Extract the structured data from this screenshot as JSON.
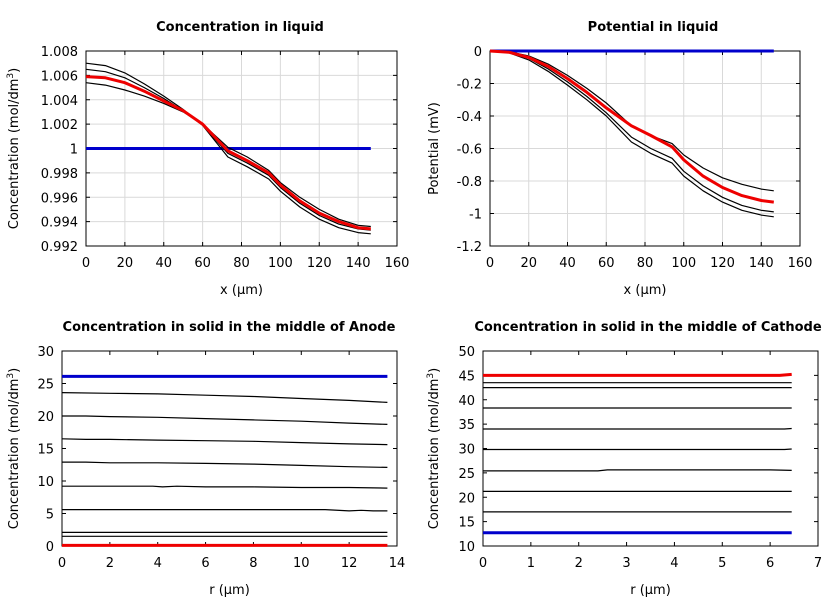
{
  "chart_data": [
    {
      "type": "line",
      "title": "Concentration in liquid",
      "xlabel": "x (µm)",
      "ylabel": "Concentration (mol/dm³)",
      "xlim": [
        0,
        160
      ],
      "ylim": [
        0.992,
        1.008
      ],
      "xticks": [
        0,
        20,
        40,
        60,
        80,
        100,
        120,
        140,
        160
      ],
      "xtick_labels": [
        "0",
        "20",
        "40",
        "60",
        "80",
        "100",
        "120",
        "140",
        "160"
      ],
      "yticks": [
        0.992,
        0.994,
        0.996,
        0.998,
        1.0,
        1.002,
        1.004,
        1.006,
        1.008
      ],
      "ytick_labels": [
        "0.992",
        "0.994",
        "0.996",
        "0.998",
        "1",
        "1.002",
        "1.004",
        "1.006",
        "1.008"
      ],
      "grid": true,
      "series": [
        {
          "color": "#0000cc",
          "width": 3,
          "x": [
            0,
            146.5
          ],
          "y": [
            1.0,
            1.0
          ]
        },
        {
          "color": "#000000",
          "width": 1.2,
          "x": [
            0,
            10,
            20,
            30,
            40,
            50,
            60,
            73,
            83,
            94,
            100,
            110,
            120,
            130,
            140,
            146.5
          ],
          "y": [
            1.007,
            1.0068,
            1.0062,
            1.0053,
            1.0043,
            1.0032,
            1.0019,
            0.9993,
            0.9985,
            0.9975,
            0.9965,
            0.9952,
            0.9942,
            0.9935,
            0.9931,
            0.993
          ]
        },
        {
          "color": "#000000",
          "width": 1.2,
          "x": [
            0,
            10,
            20,
            30,
            40,
            50,
            60,
            73,
            83,
            94,
            100,
            110,
            120,
            130,
            140,
            146.5
          ],
          "y": [
            1.0065,
            1.0063,
            1.0058,
            1.005,
            1.0041,
            1.0031,
            1.0019,
            0.9996,
            0.9988,
            0.9978,
            0.9968,
            0.9955,
            0.9945,
            0.9938,
            0.9934,
            0.9933
          ]
        },
        {
          "color": "#000000",
          "width": 1.2,
          "x": [
            0,
            10,
            20,
            30,
            40,
            50,
            60,
            73,
            83,
            94,
            100,
            110,
            120,
            130,
            140,
            146.5
          ],
          "y": [
            1.0054,
            1.0052,
            1.0048,
            1.0043,
            1.0037,
            1.003,
            1.002,
            1.0001,
            0.9993,
            0.9982,
            0.9972,
            0.996,
            0.995,
            0.9942,
            0.9937,
            0.9936
          ]
        },
        {
          "color": "#ee0000",
          "width": 3,
          "x": [
            0,
            10,
            20,
            30,
            40,
            50,
            60,
            73,
            83,
            94,
            100,
            110,
            120,
            130,
            140,
            146.5
          ],
          "y": [
            1.0059,
            1.0058,
            1.0054,
            1.0047,
            1.0039,
            1.0031,
            1.002,
            0.9998,
            0.999,
            0.998,
            0.997,
            0.9957,
            0.9947,
            0.994,
            0.9935,
            0.9934
          ]
        }
      ]
    },
    {
      "type": "line",
      "title": "Potential in liquid",
      "xlabel": "x (µm)",
      "ylabel": "Potential (mV)",
      "xlim": [
        0,
        160
      ],
      "ylim": [
        -1.2,
        0
      ],
      "xticks": [
        0,
        20,
        40,
        60,
        80,
        100,
        120,
        140,
        160
      ],
      "xtick_labels": [
        "0",
        "20",
        "40",
        "60",
        "80",
        "100",
        "120",
        "140",
        "160"
      ],
      "yticks": [
        -1.2,
        -1.0,
        -0.8,
        -0.6,
        -0.4,
        -0.2,
        0
      ],
      "ytick_labels": [
        "-1.2",
        "-1",
        "-0.8",
        "-0.6",
        "-0.4",
        "-0.2",
        "0"
      ],
      "grid": true,
      "series": [
        {
          "color": "#0000cc",
          "width": 3,
          "x": [
            0,
            146.5
          ],
          "y": [
            0,
            0
          ]
        },
        {
          "color": "#000000",
          "width": 1.2,
          "x": [
            0,
            10,
            20,
            30,
            40,
            50,
            60,
            73,
            83,
            94,
            100,
            110,
            120,
            130,
            140,
            146.5
          ],
          "y": [
            0,
            -0.005,
            -0.03,
            -0.08,
            -0.15,
            -0.23,
            -0.32,
            -0.46,
            -0.52,
            -0.57,
            -0.64,
            -0.72,
            -0.78,
            -0.82,
            -0.85,
            -0.86
          ]
        },
        {
          "color": "#000000",
          "width": 1.2,
          "x": [
            0,
            10,
            20,
            30,
            40,
            50,
            60,
            73,
            83,
            94,
            100,
            110,
            120,
            130,
            140,
            146.5
          ],
          "y": [
            0,
            -0.01,
            -0.045,
            -0.11,
            -0.19,
            -0.28,
            -0.38,
            -0.53,
            -0.6,
            -0.66,
            -0.74,
            -0.83,
            -0.9,
            -0.95,
            -0.98,
            -0.99
          ]
        },
        {
          "color": "#000000",
          "width": 1.2,
          "x": [
            0,
            10,
            20,
            30,
            40,
            50,
            60,
            73,
            83,
            94,
            100,
            110,
            120,
            130,
            140,
            146.5
          ],
          "y": [
            0,
            -0.012,
            -0.055,
            -0.125,
            -0.21,
            -0.3,
            -0.4,
            -0.56,
            -0.63,
            -0.69,
            -0.77,
            -0.86,
            -0.93,
            -0.98,
            -1.01,
            -1.02
          ]
        },
        {
          "color": "#ee0000",
          "width": 3,
          "x": [
            0,
            10,
            20,
            30,
            40,
            50,
            60,
            73,
            83,
            94,
            100,
            110,
            120,
            130,
            140,
            146.5
          ],
          "y": [
            0,
            -0.008,
            -0.04,
            -0.095,
            -0.17,
            -0.255,
            -0.35,
            -0.46,
            -0.52,
            -0.59,
            -0.67,
            -0.77,
            -0.84,
            -0.89,
            -0.92,
            -0.93
          ]
        }
      ]
    },
    {
      "type": "line",
      "title": "Concentration in solid in the middle of Anode",
      "xlabel": "r (µm)",
      "ylabel": "Concentration (mol/dm³)",
      "xlim": [
        0,
        14
      ],
      "ylim": [
        0,
        30
      ],
      "xticks": [
        0,
        2,
        4,
        6,
        8,
        10,
        12,
        14
      ],
      "xtick_labels": [
        "0",
        "2",
        "4",
        "6",
        "8",
        "10",
        "12",
        "14"
      ],
      "yticks": [
        0,
        5,
        10,
        15,
        20,
        25,
        30
      ],
      "ytick_labels": [
        "0",
        "5",
        "10",
        "15",
        "20",
        "25",
        "30"
      ],
      "grid": false,
      "series": [
        {
          "color": "#0000cc",
          "width": 3,
          "x": [
            0,
            13.6
          ],
          "y": [
            26.1,
            26.1
          ]
        },
        {
          "color": "#000000",
          "width": 1.2,
          "x": [
            0,
            2,
            4,
            6,
            8,
            10,
            12,
            13.6
          ],
          "y": [
            23.6,
            23.5,
            23.4,
            23.2,
            23.0,
            22.7,
            22.4,
            22.1
          ]
        },
        {
          "color": "#000000",
          "width": 1.2,
          "x": [
            0,
            1,
            2,
            4,
            6,
            8,
            10,
            12,
            13.6
          ],
          "y": [
            20.0,
            20.0,
            19.9,
            19.8,
            19.6,
            19.4,
            19.2,
            18.9,
            18.7
          ]
        },
        {
          "color": "#000000",
          "width": 1.2,
          "x": [
            0,
            1,
            2,
            4,
            6,
            8,
            10,
            12,
            13.6
          ],
          "y": [
            16.5,
            16.4,
            16.4,
            16.3,
            16.2,
            16.1,
            15.9,
            15.7,
            15.6
          ]
        },
        {
          "color": "#000000",
          "width": 1.2,
          "x": [
            0,
            1,
            2,
            4,
            6,
            8,
            10,
            12,
            13.6
          ],
          "y": [
            12.9,
            12.9,
            12.8,
            12.8,
            12.7,
            12.6,
            12.4,
            12.2,
            12.1
          ]
        },
        {
          "color": "#000000",
          "width": 1.2,
          "x": [
            0,
            2,
            3.8,
            4.2,
            4.8,
            6,
            8,
            10,
            12,
            13.6
          ],
          "y": [
            9.2,
            9.2,
            9.2,
            9.1,
            9.2,
            9.1,
            9.1,
            9.0,
            9.0,
            8.9
          ]
        },
        {
          "color": "#000000",
          "width": 1.2,
          "x": [
            0,
            2,
            4,
            6,
            8,
            10,
            11,
            12,
            12.5,
            13,
            13.6
          ],
          "y": [
            5.6,
            5.6,
            5.6,
            5.6,
            5.6,
            5.6,
            5.6,
            5.4,
            5.5,
            5.4,
            5.4
          ]
        },
        {
          "color": "#000000",
          "width": 1.2,
          "x": [
            0,
            13.6
          ],
          "y": [
            2.1,
            2.1
          ]
        },
        {
          "color": "#000000",
          "width": 1.2,
          "x": [
            0,
            13.6
          ],
          "y": [
            1.5,
            1.5
          ]
        },
        {
          "color": "#ee0000",
          "width": 3,
          "x": [
            0,
            13.6
          ],
          "y": [
            0.1,
            0.1
          ]
        }
      ]
    },
    {
      "type": "line",
      "title": "Concentration in solid in the middle of Cathode",
      "xlabel": "r (µm)",
      "ylabel": "Concentration (mol/dm³)",
      "xlim": [
        0,
        7
      ],
      "ylim": [
        10,
        50
      ],
      "xticks": [
        0,
        1,
        2,
        3,
        4,
        5,
        6,
        7
      ],
      "xtick_labels": [
        "0",
        "1",
        "2",
        "3",
        "4",
        "5",
        "6",
        "7"
      ],
      "yticks": [
        10,
        15,
        20,
        25,
        30,
        35,
        40,
        45,
        50
      ],
      "ytick_labels": [
        "10",
        "15",
        "20",
        "25",
        "30",
        "35",
        "40",
        "45",
        "50"
      ],
      "grid": false,
      "series": [
        {
          "color": "#0000cc",
          "width": 3,
          "x": [
            0,
            6.45
          ],
          "y": [
            12.7,
            12.7
          ]
        },
        {
          "color": "#000000",
          "width": 1.2,
          "x": [
            0,
            6.45
          ],
          "y": [
            17.0,
            17.0
          ]
        },
        {
          "color": "#000000",
          "width": 1.2,
          "x": [
            0,
            6.45
          ],
          "y": [
            21.2,
            21.2
          ]
        },
        {
          "color": "#000000",
          "width": 1.2,
          "x": [
            0,
            2.4,
            2.5,
            2.6,
            6.0,
            6.45
          ],
          "y": [
            25.4,
            25.4,
            25.5,
            25.6,
            25.6,
            25.5
          ]
        },
        {
          "color": "#000000",
          "width": 1.2,
          "x": [
            0,
            6.3,
            6.45
          ],
          "y": [
            29.8,
            29.8,
            29.9
          ]
        },
        {
          "color": "#000000",
          "width": 1.2,
          "x": [
            0,
            6.3,
            6.45
          ],
          "y": [
            34.0,
            34.0,
            34.1
          ]
        },
        {
          "color": "#000000",
          "width": 1.2,
          "x": [
            0,
            6.45
          ],
          "y": [
            38.3,
            38.3
          ]
        },
        {
          "color": "#000000",
          "width": 1.2,
          "x": [
            0,
            6.45
          ],
          "y": [
            42.5,
            42.5
          ]
        },
        {
          "color": "#000000",
          "width": 1.2,
          "x": [
            0,
            6.45
          ],
          "y": [
            43.5,
            43.5
          ]
        },
        {
          "color": "#ee0000",
          "width": 3,
          "x": [
            0,
            6.2,
            6.45
          ],
          "y": [
            45.0,
            45.0,
            45.2
          ]
        }
      ]
    }
  ]
}
